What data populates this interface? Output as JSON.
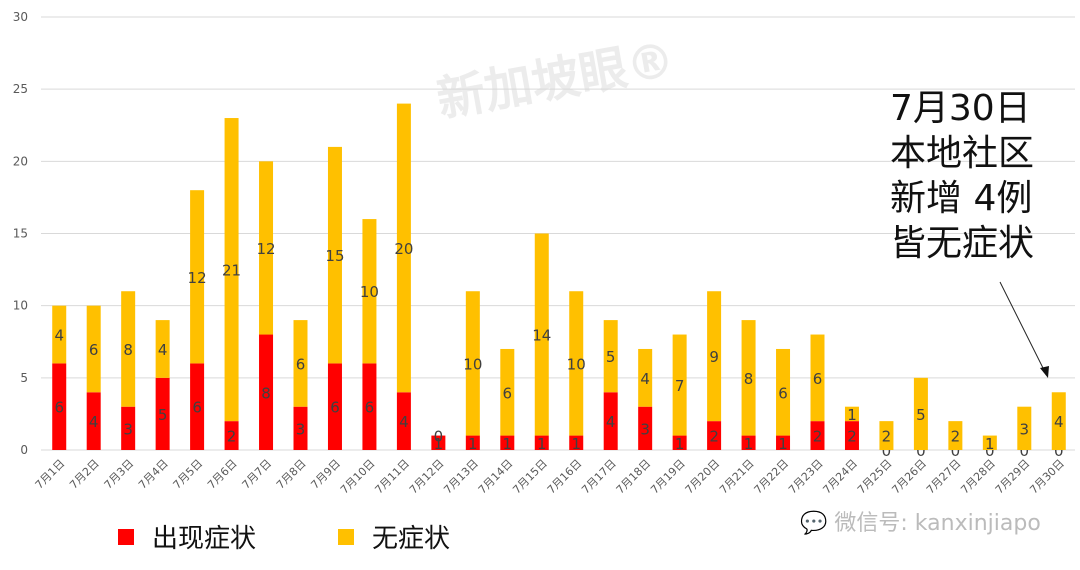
{
  "chart_data": {
    "type": "bar",
    "stacked": true,
    "title": "",
    "xlabel": "",
    "ylabel": "",
    "ylim": [
      0,
      30
    ],
    "yticks": [
      0,
      5,
      10,
      15,
      20,
      25,
      30
    ],
    "grid": true,
    "legend_position": "bottom-left",
    "categories": [
      "7月1日",
      "7月2日",
      "7月3日",
      "7月4日",
      "7月5日",
      "7月6日",
      "7月7日",
      "7月8日",
      "7月9日",
      "7月10日",
      "7月11日",
      "7月12日",
      "7月13日",
      "7月14日",
      "7月15日",
      "7月16日",
      "7月17日",
      "7月18日",
      "7月19日",
      "7月20日",
      "7月21日",
      "7月22日",
      "7月23日",
      "7月24日",
      "7月25日",
      "7月26日",
      "7月27日",
      "7月28日",
      "7月29日",
      "7月30日"
    ],
    "series": [
      {
        "name": "出现症状",
        "color": "#FF0000",
        "values": [
          6,
          4,
          3,
          5,
          6,
          2,
          8,
          3,
          6,
          6,
          4,
          1,
          1,
          1,
          1,
          1,
          4,
          3,
          1,
          2,
          1,
          1,
          2,
          2,
          0,
          0,
          0,
          0,
          0,
          0
        ]
      },
      {
        "name": "无症状",
        "color": "#FFC000",
        "values": [
          4,
          6,
          8,
          4,
          12,
          21,
          12,
          6,
          15,
          10,
          20,
          0,
          10,
          6,
          14,
          10,
          5,
          4,
          7,
          9,
          8,
          6,
          6,
          1,
          2,
          5,
          2,
          1,
          3,
          4
        ]
      }
    ],
    "annotations": [
      {
        "text": "7月30日 本地社区 新增 4例 皆无症状",
        "points_to": "7月30日"
      }
    ]
  },
  "legend": {
    "items": [
      {
        "label": "出现症状",
        "color": "#FF0000"
      },
      {
        "label": "无症状",
        "color": "#FFC000"
      }
    ]
  },
  "annotation": {
    "lines": [
      "7月30日",
      "本地社区",
      "新增 4例",
      "皆无症状"
    ]
  },
  "watermark": {
    "logo_text": "新加坡眼®",
    "wechat": "微信号: kanxinjiapo"
  }
}
